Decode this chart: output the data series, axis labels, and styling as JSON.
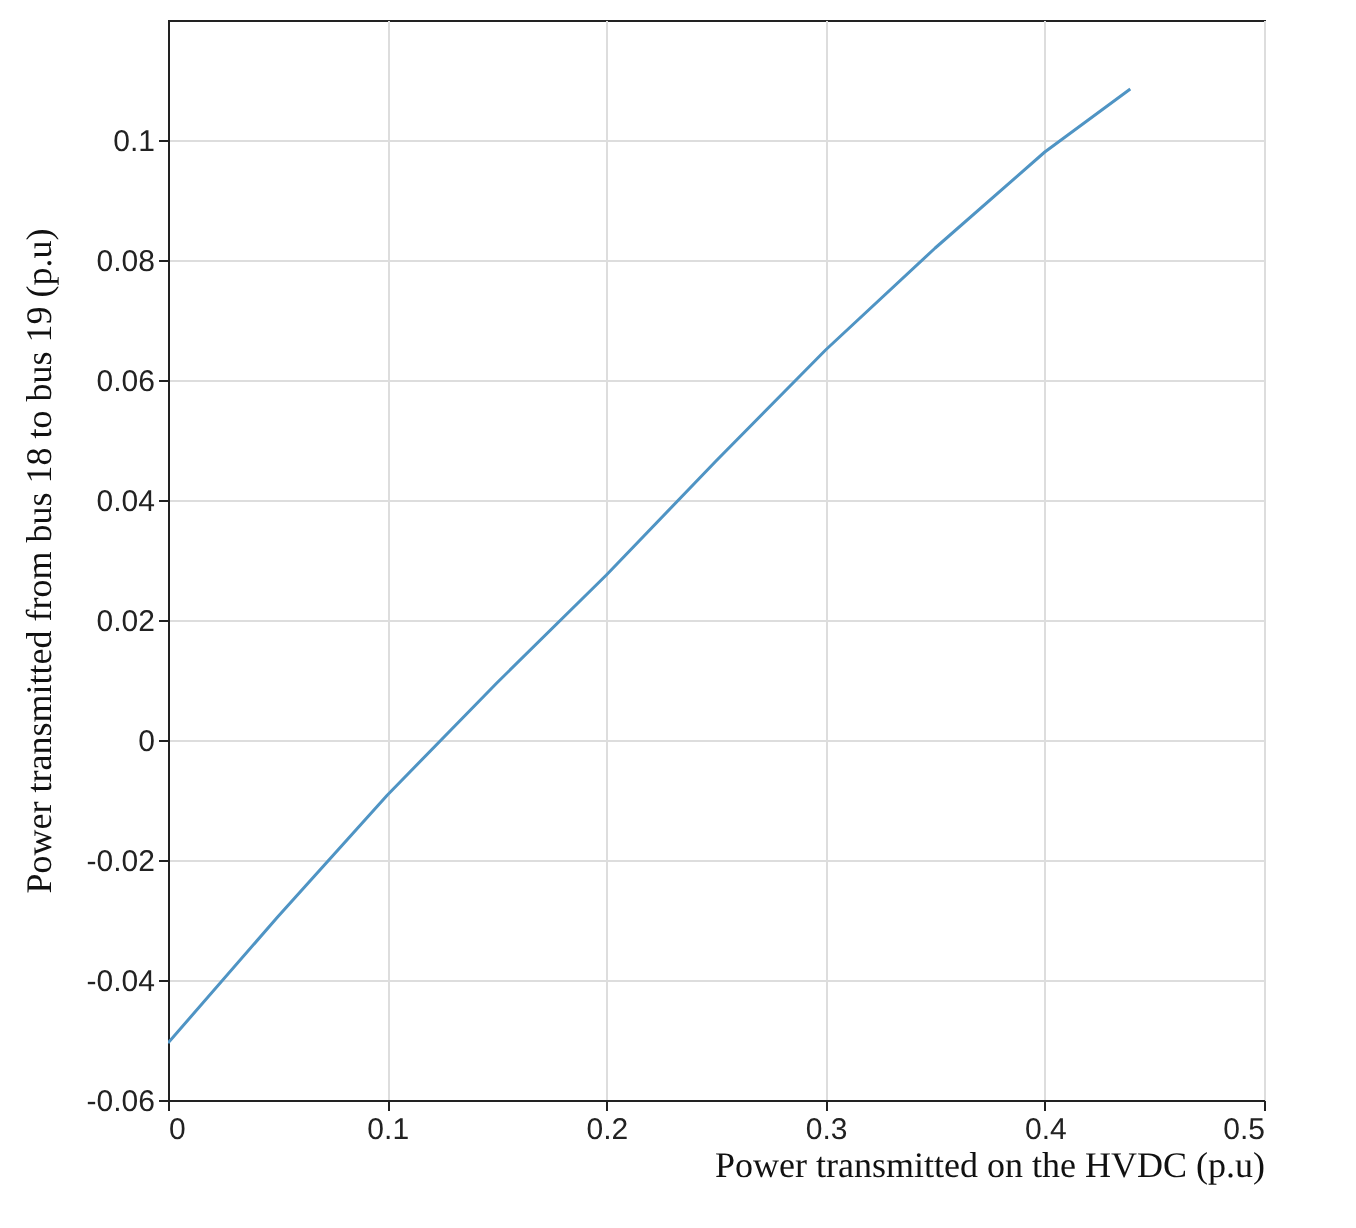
{
  "chart_data": {
    "type": "line",
    "xlabel": "Power transmitted on the HVDC (p.u)",
    "ylabel": "Power transmitted from bus 18 to bus 19 (p.u)",
    "x": [
      0,
      0.05,
      0.1,
      0.15,
      0.2,
      0.25,
      0.3,
      0.35,
      0.4,
      0.439
    ],
    "series": [
      {
        "color": "#4f94c4",
        "values": [
          -0.0505,
          -0.0295,
          -0.0092,
          0.0095,
          0.0275,
          0.0465,
          0.065,
          0.082,
          0.098,
          0.1085
        ]
      }
    ],
    "xlim": [
      0,
      0.5
    ],
    "xticks": [
      0,
      0.1,
      0.2,
      0.3,
      0.4,
      0.5
    ],
    "ylim": [
      -0.06,
      0.12
    ],
    "yticks": [
      -0.06,
      -0.04,
      -0.02,
      0,
      0.02,
      0.04,
      0.06,
      0.08,
      0.1
    ],
    "grid": true,
    "marker": "none",
    "line_style": "solid"
  }
}
